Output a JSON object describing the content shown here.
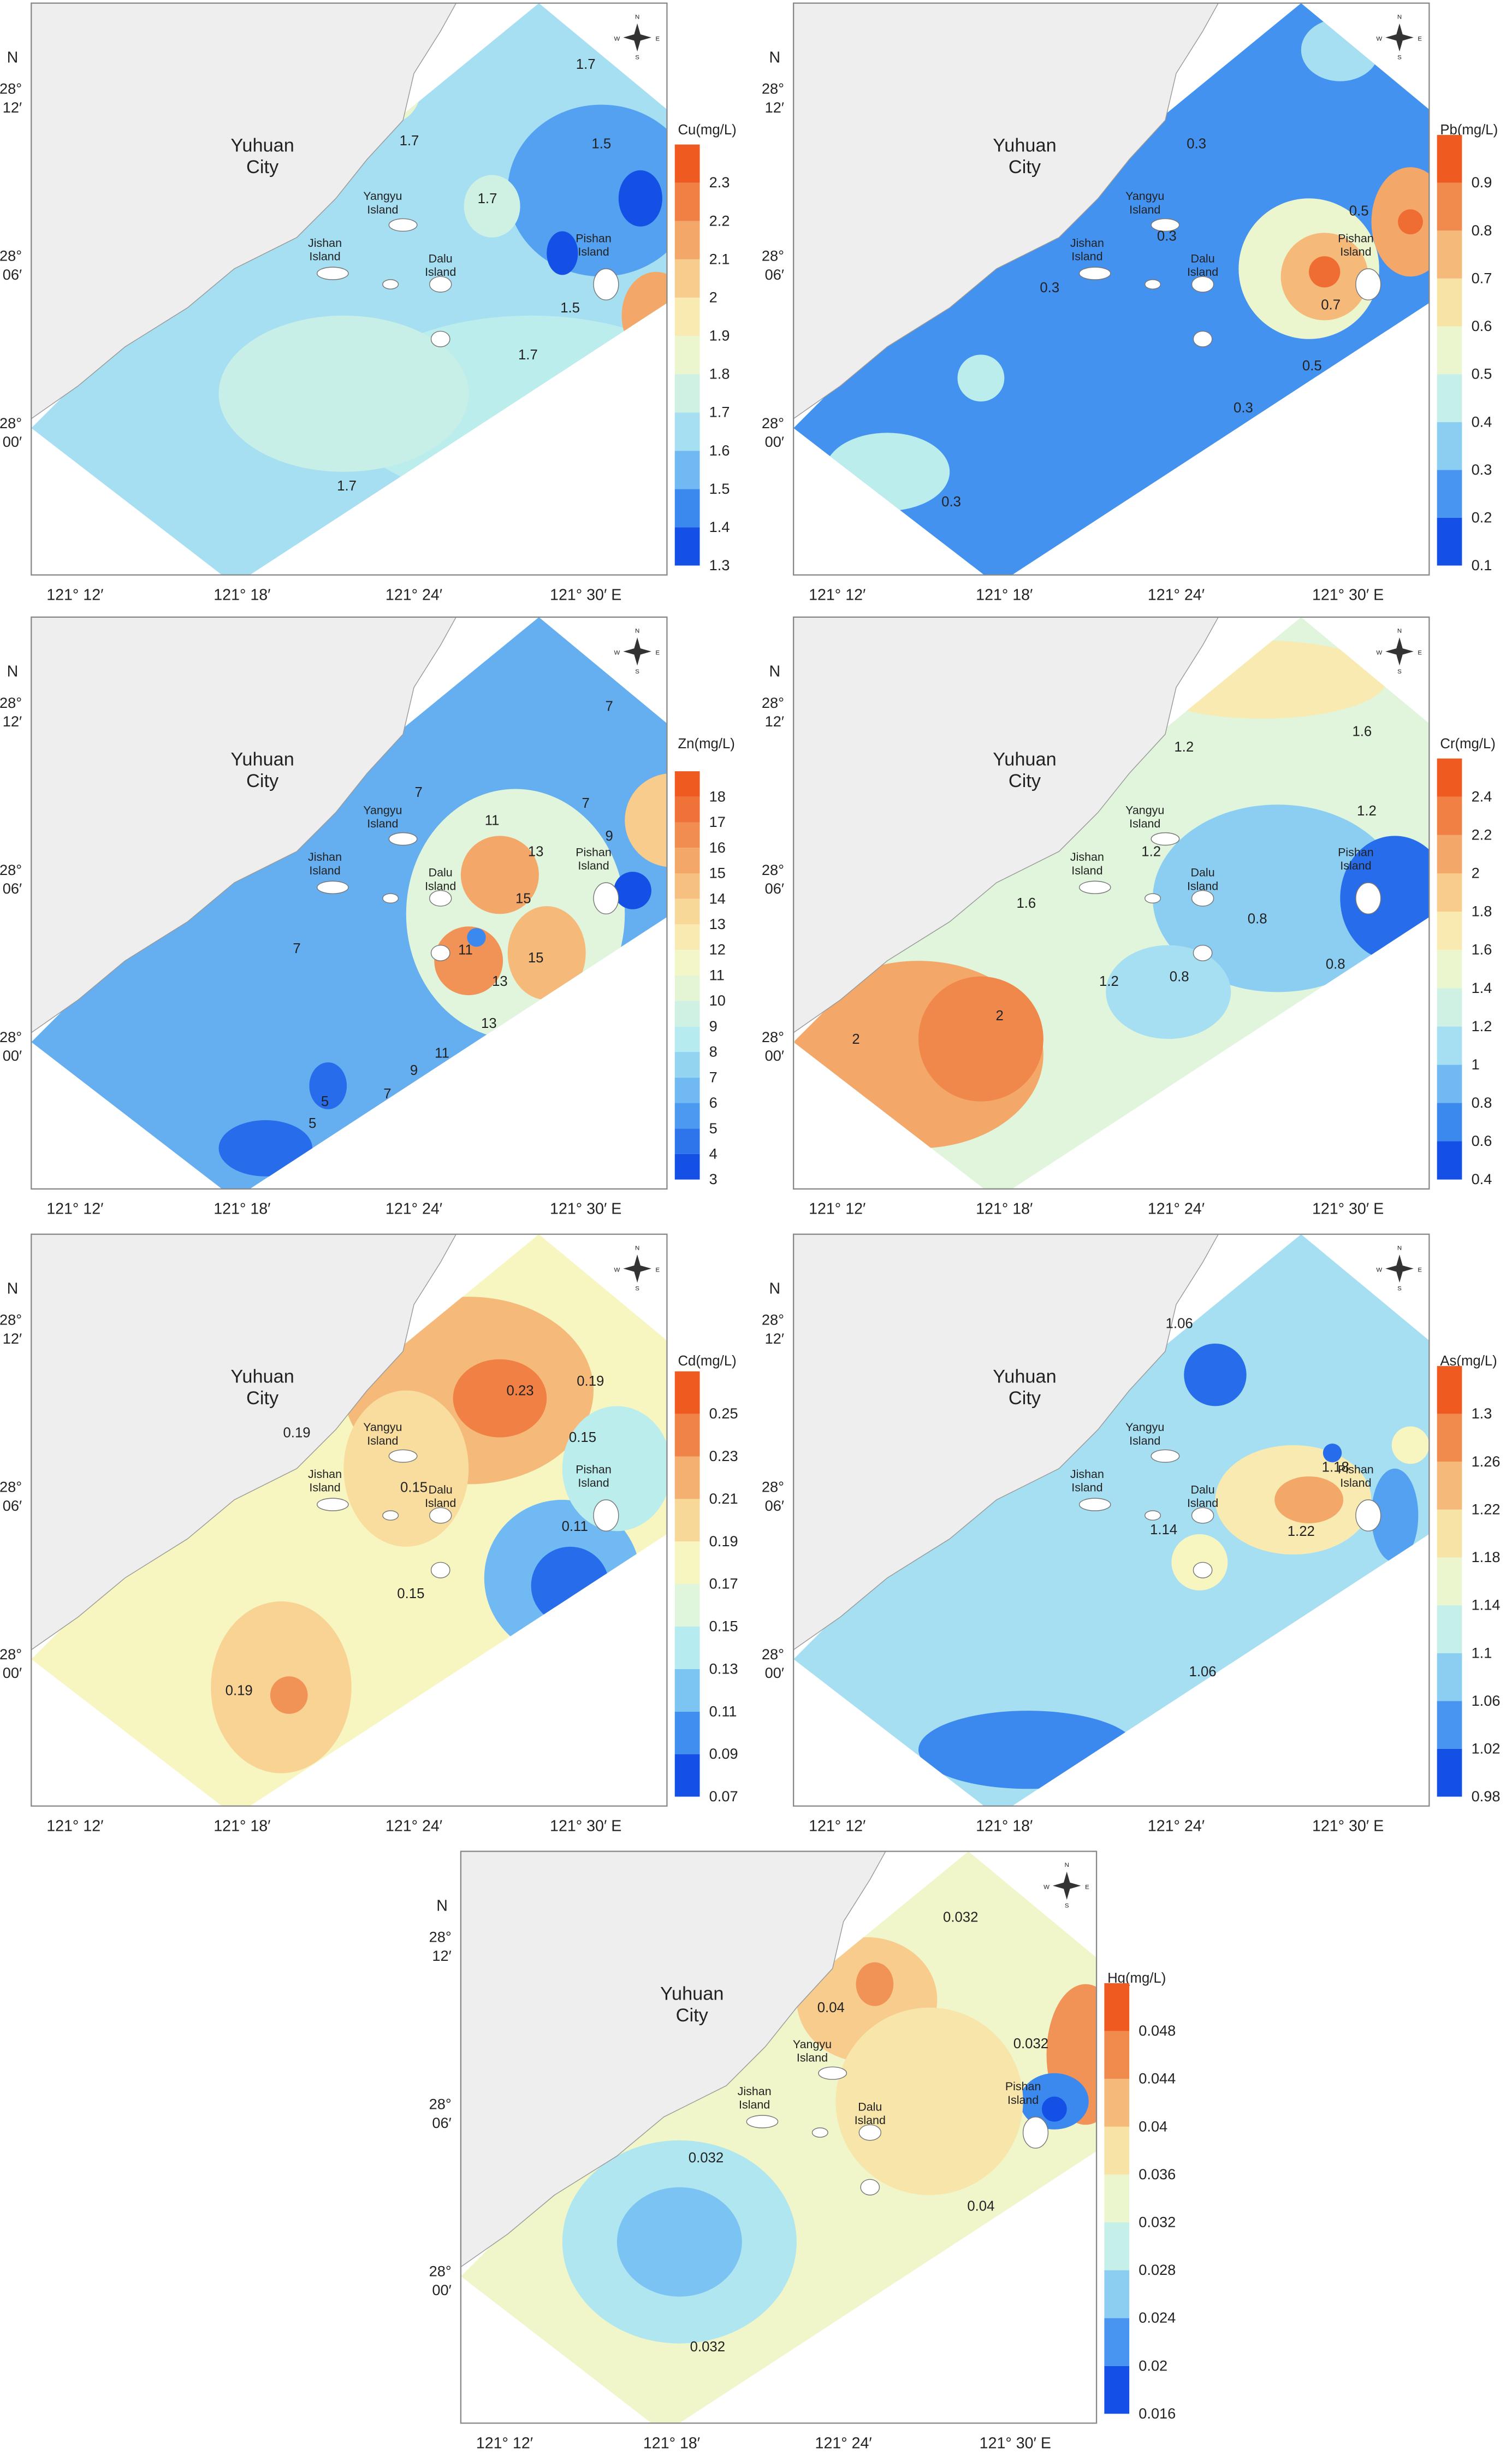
{
  "compass": [
    "N",
    "S",
    "W",
    "E"
  ],
  "north": "N",
  "x_ticks": [
    "121° 12′",
    "121° 18′",
    "121° 24′",
    "121° 30′  E"
  ],
  "y_ticks": [
    [
      "28°",
      "12′"
    ],
    [
      "28°",
      "06′"
    ],
    [
      "28°",
      "00′"
    ]
  ],
  "places": [
    [
      "Yuhuan",
      "City"
    ],
    [
      "Yangyu",
      "Island"
    ],
    [
      "Jishan",
      "Island"
    ],
    [
      "Dalu",
      "Island"
    ],
    [
      "Pishan",
      "Island"
    ]
  ],
  "panels": [
    {
      "legend_title": "Cu(mg/L)",
      "colorbar_ticks": [
        1.3,
        1.4,
        1.5,
        1.6,
        1.7,
        1.8,
        1.9,
        2,
        2.1,
        2.2,
        2.3
      ],
      "contour_labels": [
        "1.7",
        "1.7",
        "1.5",
        "1.7",
        "1.5",
        "1.7",
        "1.7"
      ]
    },
    {
      "legend_title": "Pb(mg/L)",
      "colorbar_ticks": [
        0.1,
        0.2,
        0.3,
        0.4,
        0.5,
        0.6,
        0.7,
        0.8,
        0.9
      ],
      "contour_labels": [
        "0.3",
        "0.5",
        "0.3",
        "0.3",
        "0.7",
        "0.5",
        "0.3",
        "0.3"
      ]
    },
    {
      "legend_title": "Zn(mg/L)",
      "colorbar_ticks": [
        3,
        4,
        5,
        6,
        7,
        8,
        9,
        10,
        11,
        12,
        13,
        14,
        15,
        16,
        17,
        18
      ],
      "contour_labels": [
        "7",
        "7",
        "7",
        "11",
        "13",
        "9",
        "15",
        "11",
        "13",
        "15",
        "7",
        "13",
        "11",
        "9",
        "7",
        "5",
        "5"
      ]
    },
    {
      "legend_title": "Cr(mg/L)",
      "colorbar_ticks": [
        0.4,
        0.6,
        0.8,
        1,
        1.2,
        1.4,
        1.6,
        1.8,
        2,
        2.2,
        2.4
      ],
      "contour_labels": [
        "1.6",
        "1.2",
        "1.2",
        "1.2",
        "1.6",
        "0.8",
        "1.2",
        "0.8",
        "0.8",
        "2",
        "2"
      ]
    },
    {
      "legend_title": "Cd(mg/L)",
      "colorbar_ticks": [
        0.07,
        0.09,
        0.11,
        0.13,
        0.15,
        0.17,
        0.19,
        0.21,
        0.23,
        0.25
      ],
      "contour_labels": [
        "0.19",
        "0.23",
        "0.15",
        "0.19",
        "0.15",
        "0.11",
        "0.15",
        "0.19"
      ]
    },
    {
      "legend_title": "As(mg/L)",
      "colorbar_ticks": [
        0.98,
        1.02,
        1.06,
        1.1,
        1.14,
        1.18,
        1.22,
        1.26,
        1.3
      ],
      "contour_labels": [
        "1.06",
        "1.18",
        "1.14",
        "1.22",
        "1.06"
      ]
    },
    {
      "legend_title": "Hg(mg/L)",
      "colorbar_ticks": [
        0.016,
        0.02,
        0.024,
        0.028,
        0.032,
        0.036,
        0.04,
        0.044,
        0.048
      ],
      "contour_labels": [
        "0.032",
        "0.04",
        "0.032",
        "0.032",
        "0.04",
        "0.032"
      ]
    }
  ]
}
